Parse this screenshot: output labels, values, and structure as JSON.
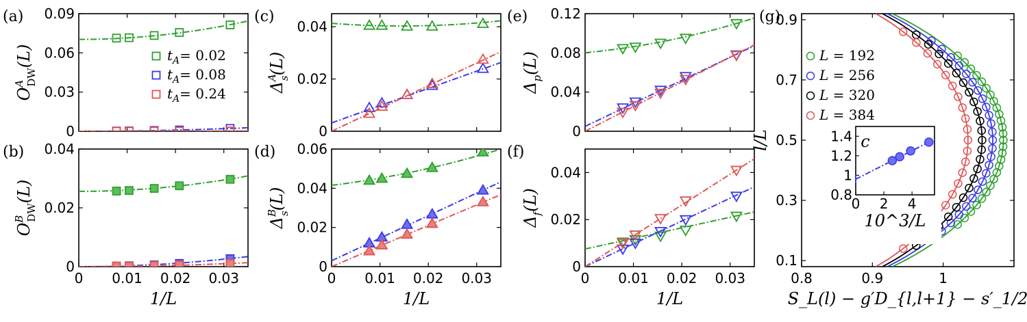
{
  "colors": {
    "green": "#2ca02c",
    "blue": "#3a3ae6",
    "red": "#e05555",
    "black": "#000000",
    "green_fill": "#5cbf5c",
    "blue_fill": "#6e6ef2",
    "red_fill": "#ea8080"
  },
  "chart_data": [
    {
      "id": "a",
      "panel_label": "(a)",
      "type": "scatter",
      "marker": "square",
      "filled": false,
      "ylabel": "O^A_DW(L)",
      "ylabel_main": "O",
      "ylabel_sup": "A",
      "ylabel_sub": "DW",
      "ylabel_tail": "(L)",
      "xlabel": "",
      "xlim": [
        0,
        0.035
      ],
      "ylim": [
        0,
        0.09
      ],
      "xticks": [
        0,
        0.01,
        0.02,
        0.03
      ],
      "xticklabels": [
        "",
        "",
        "",
        ""
      ],
      "yticks": [
        0,
        0.03,
        0.06,
        0.09
      ],
      "yticklabels": [
        "0",
        "0.03",
        "0.06",
        "0.09"
      ],
      "legend": [
        "t_A= 0.02",
        "t_A= 0.08",
        "t_A= 0.24"
      ],
      "legend_position": "right",
      "series": [
        {
          "name": "t_A= 0.02",
          "color": "green",
          "x": [
            0.0078,
            0.0104,
            0.0156,
            0.0208,
            0.0313
          ],
          "y": [
            0.0713,
            0.0716,
            0.0733,
            0.0756,
            0.0814
          ],
          "fit": [
            0.0703,
            0.0,
            11.5
          ]
        },
        {
          "name": "t_A= 0.08",
          "color": "blue",
          "x": [
            0.0078,
            0.0104,
            0.0156,
            0.0208,
            0.0313
          ],
          "y": [
            0.0002,
            0.0003,
            0.0006,
            0.001,
            0.0022
          ],
          "fit": [
            0.0,
            0.0,
            2.2
          ]
        },
        {
          "name": "t_A= 0.24",
          "color": "red",
          "x": [
            0.0078,
            0.0104,
            0.0156,
            0.0208,
            0.0313
          ],
          "y": [
            0.0,
            0.0,
            0.0001,
            0.0001,
            0.0002
          ],
          "fit": [
            0.0,
            0.0,
            0.2
          ]
        }
      ]
    },
    {
      "id": "b",
      "panel_label": "(b)",
      "type": "scatter",
      "marker": "square",
      "filled": true,
      "ylabel": "O^B_DW(L)",
      "ylabel_main": "O",
      "ylabel_sup": "B",
      "ylabel_sub": "DW",
      "ylabel_tail": "(L)",
      "xlabel": "1/L",
      "xlim": [
        0,
        0.035
      ],
      "ylim": [
        0,
        0.04
      ],
      "xticks": [
        0,
        0.01,
        0.02,
        0.03
      ],
      "xticklabels": [
        "0",
        "0.01",
        "0.02",
        "0.03"
      ],
      "yticks": [
        0,
        0.02,
        0.04
      ],
      "yticklabels": [
        "0",
        "0.02",
        "0.04"
      ],
      "series": [
        {
          "name": "t_A= 0.02",
          "color": "green",
          "x": [
            0.0078,
            0.0104,
            0.0156,
            0.0208,
            0.0313
          ],
          "y": [
            0.0257,
            0.0259,
            0.0266,
            0.0275,
            0.0297
          ],
          "fit": [
            0.0256,
            0.0,
            4.3
          ]
        },
        {
          "name": "t_A= 0.08",
          "color": "blue",
          "x": [
            0.0078,
            0.0104,
            0.0156,
            0.0208,
            0.0313
          ],
          "y": [
            0.0002,
            0.0003,
            0.0006,
            0.0011,
            0.0027
          ],
          "fit": [
            0.0,
            0.0,
            2.8
          ]
        },
        {
          "name": "t_A= 0.24",
          "color": "red",
          "x": [
            0.0078,
            0.0104,
            0.0156,
            0.0208,
            0.0313
          ],
          "y": [
            0.0002,
            0.0002,
            0.0004,
            0.0006,
            0.0011
          ],
          "fit": [
            0.0,
            0.0,
            1.1
          ]
        }
      ]
    },
    {
      "id": "c",
      "panel_label": "(c)",
      "type": "scatter",
      "marker": "triangle-up",
      "filled": false,
      "ylabel": "Δ^A_s(L)",
      "ylabel_main": "Δ",
      "ylabel_sup": "A",
      "ylabel_sub": "s",
      "ylabel_tail": "(L)",
      "xlabel": "",
      "xlim": [
        0,
        0.035
      ],
      "ylim": [
        0,
        0.045
      ],
      "xticks": [
        0,
        0.01,
        0.02,
        0.03
      ],
      "xticklabels": [
        "",
        "",
        "",
        ""
      ],
      "yticks": [
        0,
        0.02,
        0.04
      ],
      "yticklabels": [
        "0",
        "0.02",
        "0.04"
      ],
      "series": [
        {
          "name": "t_A= 0.02",
          "color": "green",
          "x": [
            0.0078,
            0.0104,
            0.0156,
            0.0208,
            0.0313
          ],
          "y": [
            0.0405,
            0.0405,
            0.0402,
            0.0402,
            0.0412
          ],
          "fit": [
            0.0413,
            -0.14,
            4.8
          ]
        },
        {
          "name": "t_A= 0.08",
          "color": "blue",
          "x": [
            0.0078,
            0.0104,
            0.0156,
            0.0208,
            0.0313
          ],
          "y": [
            0.009,
            0.0108,
            0.014,
            0.0175,
            0.024
          ],
          "fit": [
            0.0032,
            0.66,
            0.0
          ]
        },
        {
          "name": "t_A= 0.24",
          "color": "red",
          "x": [
            0.0078,
            0.0104,
            0.0156,
            0.0208,
            0.0313
          ],
          "y": [
            0.0068,
            0.0095,
            0.014,
            0.0182,
            0.0275
          ],
          "fit": [
            0.0,
            0.87,
            0.0
          ]
        }
      ]
    },
    {
      "id": "d",
      "panel_label": "(d)",
      "type": "scatter",
      "marker": "triangle-up",
      "filled": true,
      "ylabel": "Δ^B_s(L)",
      "ylabel_main": "Δ",
      "ylabel_sup": "B",
      "ylabel_sub": "s",
      "ylabel_tail": "(L)",
      "xlabel": "1/L",
      "xlim": [
        0,
        0.035
      ],
      "ylim": [
        0,
        0.06
      ],
      "xticks": [
        0,
        0.01,
        0.02,
        0.03
      ],
      "xticklabels": [
        "0",
        "0.01",
        "0.02",
        "0.03"
      ],
      "yticks": [
        0,
        0.02,
        0.04,
        0.06
      ],
      "yticklabels": [
        "0",
        "0.02",
        "0.04",
        "0.06"
      ],
      "series": [
        {
          "name": "t_A= 0.02",
          "color": "green",
          "x": [
            0.0078,
            0.0104,
            0.0156,
            0.0208,
            0.0313
          ],
          "y": [
            0.044,
            0.045,
            0.0475,
            0.0505,
            0.0585
          ],
          "fit": [
            0.0415,
            0.3,
            6.5
          ]
        },
        {
          "name": "t_A= 0.08",
          "color": "blue",
          "x": [
            0.0078,
            0.0104,
            0.0156,
            0.0208,
            0.0313
          ],
          "y": [
            0.012,
            0.015,
            0.0215,
            0.0268,
            0.039
          ],
          "fit": [
            0.003,
            1.15,
            0.0
          ]
        },
        {
          "name": "t_A= 0.24",
          "color": "red",
          "x": [
            0.0078,
            0.0104,
            0.0156,
            0.0208,
            0.0313
          ],
          "y": [
            0.008,
            0.011,
            0.0165,
            0.022,
            0.033
          ],
          "fit": [
            0.0,
            1.05,
            0.0
          ]
        }
      ]
    },
    {
      "id": "e",
      "panel_label": "(e)",
      "type": "scatter",
      "marker": "triangle-down",
      "filled": false,
      "ylabel": "Δ_p(L)",
      "ylabel_main": "Δ",
      "ylabel_sup": "",
      "ylabel_sub": "p",
      "ylabel_tail": "(L)",
      "xlabel": "",
      "xlim": [
        0,
        0.035
      ],
      "ylim": [
        0,
        0.12
      ],
      "xticks": [
        0,
        0.01,
        0.02,
        0.03
      ],
      "xticklabels": [
        "",
        "",
        "",
        ""
      ],
      "yticks": [
        0,
        0.04,
        0.08,
        0.12
      ],
      "yticklabels": [
        "0",
        "0.04",
        "0.08",
        "0.12"
      ],
      "series": [
        {
          "name": "t_A= 0.02",
          "color": "green",
          "x": [
            0.0078,
            0.0104,
            0.0156,
            0.0208,
            0.0313
          ],
          "y": [
            0.0845,
            0.086,
            0.09,
            0.095,
            0.11
          ],
          "fit": [
            0.0802,
            0.45,
            16.0
          ]
        },
        {
          "name": "t_A= 0.08",
          "color": "blue",
          "x": [
            0.0078,
            0.0104,
            0.0156,
            0.0208,
            0.0313
          ],
          "y": [
            0.024,
            0.03,
            0.042,
            0.056,
            0.078
          ],
          "fit": [
            0.005,
            2.35,
            0.0
          ]
        },
        {
          "name": "t_A= 0.24",
          "color": "red",
          "x": [
            0.0078,
            0.0104,
            0.0156,
            0.0208,
            0.0313
          ],
          "y": [
            0.0195,
            0.0265,
            0.039,
            0.053,
            0.0775
          ],
          "fit": [
            0.0,
            2.52,
            0.0
          ]
        }
      ]
    },
    {
      "id": "f",
      "panel_label": "(f)",
      "type": "scatter",
      "marker": "triangle-down",
      "filled": false,
      "ylabel": "Δ_f(L)",
      "ylabel_main": "Δ",
      "ylabel_sup": "",
      "ylabel_sub": "f",
      "ylabel_tail": "(L)",
      "xlabel": "1/L",
      "xlim": [
        0,
        0.035
      ],
      "ylim": [
        0,
        0.05
      ],
      "xticks": [
        0,
        0.01,
        0.02,
        0.03
      ],
      "xticklabels": [
        "0",
        "0.01",
        "0.02",
        "0.03"
      ],
      "yticks": [
        0,
        0.02,
        0.04
      ],
      "yticklabels": [
        "0",
        "0.02",
        "0.04"
      ],
      "series": [
        {
          "name": "t_A= 0.02",
          "color": "green",
          "x": [
            0.0078,
            0.0104,
            0.0156,
            0.0208,
            0.0313
          ],
          "y": [
            0.0105,
            0.0115,
            0.013,
            0.0155,
            0.0215
          ],
          "fit": [
            0.0075,
            0.45,
            0.0
          ]
        },
        {
          "name": "t_A= 0.08",
          "color": "blue",
          "x": [
            0.0078,
            0.0104,
            0.0156,
            0.0208,
            0.0313
          ],
          "y": [
            0.0075,
            0.01,
            0.015,
            0.02,
            0.03
          ],
          "fit": [
            0.0,
            0.97,
            0.0
          ]
        },
        {
          "name": "t_A= 0.24",
          "color": "red",
          "x": [
            0.0078,
            0.0104,
            0.0156,
            0.0208,
            0.0313
          ],
          "y": [
            0.01,
            0.0135,
            0.0205,
            0.028,
            0.041
          ],
          "fit": [
            0.0,
            1.31,
            0.0
          ]
        }
      ]
    },
    {
      "id": "g",
      "panel_label": "(g)",
      "type": "scatter+line",
      "marker": "circle",
      "filled": false,
      "ylabel": "l/L",
      "xlabel": "S_L(l) − g′D_{l,l+1} − s′_1/2",
      "xlim": [
        0.8,
        1.1
      ],
      "ylim": [
        0.08,
        0.92
      ],
      "xticks": [
        0.8,
        0.9,
        1.0
      ],
      "xticklabels": [
        "0.8",
        "0.9",
        "1"
      ],
      "yticks": [
        0.1,
        0.3,
        0.5,
        0.7,
        0.9
      ],
      "yticklabels": [
        "0.1",
        "0.3",
        "0.5",
        "0.7",
        "0.9"
      ],
      "legend": [
        "L = 192",
        "L = 256",
        "L = 320",
        "L = 384"
      ],
      "legend_position": "left",
      "series": [
        {
          "name": "L = 192",
          "color": "green",
          "peak_x": 1.085,
          "y_range": [
            0.22,
            0.78
          ]
        },
        {
          "name": "L = 256",
          "color": "blue",
          "peak_x": 1.07,
          "y_range": [
            0.17,
            0.83
          ]
        },
        {
          "name": "L = 320",
          "color": "black",
          "peak_x": 1.055,
          "y_range": [
            0.15,
            0.85
          ]
        },
        {
          "name": "L = 384",
          "color": "red",
          "peak_x": 1.035,
          "y_range": [
            0.14,
            0.86
          ]
        }
      ],
      "inset": {
        "ylabel": "c",
        "xlabel": "10^3/L",
        "xlim": [
          0,
          5.6
        ],
        "ylim": [
          0.8,
          1.5
        ],
        "xticks": [
          0,
          2,
          4
        ],
        "xticklabels": [
          "0",
          "2",
          "4"
        ],
        "yticks": [
          0.8,
          1.0,
          1.2,
          1.4
        ],
        "yticklabels": [
          "0.8",
          "1",
          "1.2",
          "1.4"
        ],
        "x": [
          2.6,
          3.125,
          3.9,
          5.2
        ],
        "y": [
          1.15,
          1.19,
          1.25,
          1.34
        ],
        "fit_intercept": 0.96,
        "fit_slope": 0.073,
        "color": "blue"
      }
    }
  ]
}
